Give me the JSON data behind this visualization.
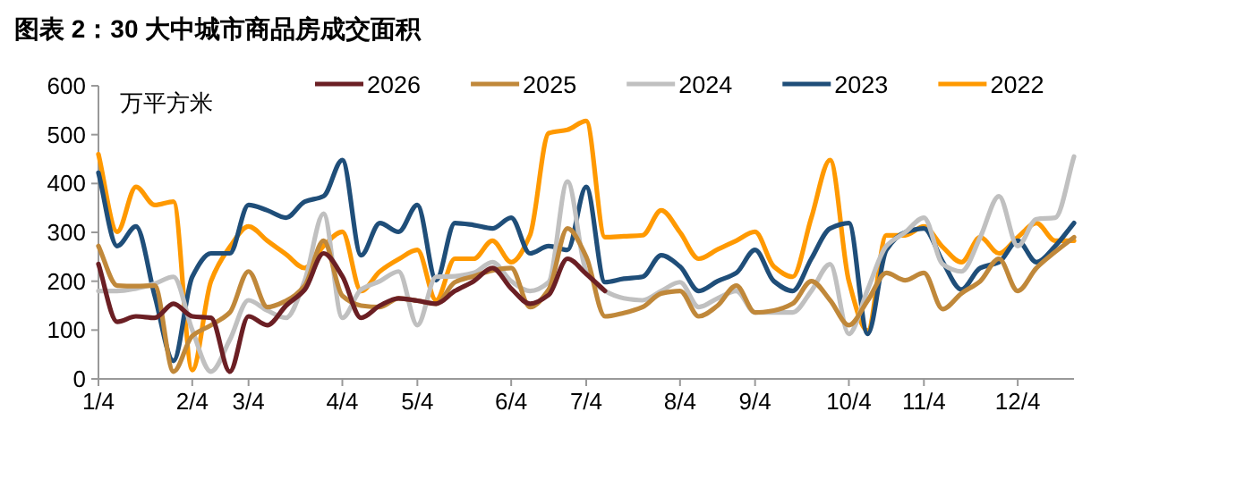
{
  "chart_data": {
    "type": "line",
    "title": "图表 2：30 大中城市商品房成交面积",
    "ylabel": "万平方米",
    "legend": "top",
    "grid": false,
    "categories": [
      "1/4",
      null,
      null,
      null,
      null,
      "2/4",
      null,
      null,
      "3/4",
      null,
      null,
      null,
      null,
      "4/4",
      null,
      null,
      null,
      "5/4",
      null,
      null,
      null,
      null,
      "6/4",
      null,
      null,
      null,
      "7/4",
      null,
      null,
      null,
      null,
      "8/4",
      null,
      null,
      null,
      "9/4",
      null,
      null,
      null,
      null,
      "10/4",
      null,
      null,
      null,
      "11/4",
      null,
      null,
      null,
      null,
      "12/4",
      null,
      null,
      null
    ],
    "ylim": [
      0,
      600
    ],
    "yticks": [
      0,
      100,
      200,
      300,
      400,
      500,
      600
    ],
    "series": [
      {
        "name": "2026",
        "color": "#6b1f24",
        "values": [
          235,
          117,
          128,
          125,
          154,
          128,
          125,
          15,
          128,
          110,
          150,
          183,
          257,
          210,
          125,
          150,
          165,
          160,
          154,
          180,
          200,
          227,
          185,
          154,
          172,
          246,
          215,
          180,
          null,
          null,
          null,
          null,
          null,
          null,
          null,
          null,
          null,
          null,
          null,
          null,
          null,
          null,
          null,
          null,
          null,
          null,
          null,
          null,
          null,
          null,
          null,
          null,
          null
        ]
      },
      {
        "name": "2025",
        "color": "#c0883a",
        "values": [
          272,
          191,
          190,
          191,
          15,
          88,
          110,
          136,
          220,
          147,
          160,
          191,
          283,
          170,
          150,
          147,
          165,
          160,
          154,
          198,
          210,
          222,
          227,
          147,
          183,
          308,
          250,
          128,
          135,
          147,
          175,
          180,
          128,
          150,
          191,
          136,
          140,
          154,
          200,
          161,
          110,
          160,
          217,
          202,
          217,
          143,
          175,
          200,
          246,
          180,
          227,
          260,
          290
        ]
      },
      {
        "name": "2024",
        "color": "#c0c0c0",
        "values": [
          180,
          180,
          185,
          195,
          209,
          100,
          15,
          80,
          161,
          140,
          125,
          202,
          338,
          125,
          183,
          200,
          220,
          110,
          209,
          210,
          217,
          239,
          200,
          180,
          198,
          404,
          220,
          180,
          165,
          161,
          180,
          198,
          147,
          165,
          180,
          136,
          136,
          136,
          180,
          235,
          92,
          183,
          272,
          300,
          330,
          235,
          220,
          290,
          374,
          272,
          327,
          330,
          455
        ]
      },
      {
        "name": "2023",
        "color": "#1f4e79",
        "values": [
          422,
          272,
          312,
          170,
          37,
          209,
          257,
          257,
          356,
          345,
          330,
          363,
          374,
          448,
          253,
          319,
          301,
          356,
          202,
          319,
          315,
          308,
          330,
          257,
          272,
          264,
          393,
          198,
          205,
          209,
          253,
          230,
          180,
          200,
          217,
          264,
          200,
          180,
          246,
          308,
          319,
          92,
          264,
          300,
          308,
          240,
          183,
          227,
          239,
          283,
          239,
          272,
          319
        ]
      },
      {
        "name": "2022",
        "color": "#ff9900",
        "values": [
          460,
          301,
          393,
          356,
          363,
          18,
          200,
          270,
          312,
          283,
          255,
          227,
          272,
          301,
          180,
          220,
          245,
          264,
          161,
          246,
          246,
          283,
          239,
          294,
          503,
          510,
          528,
          290,
          292,
          294,
          345,
          300,
          246,
          265,
          283,
          301,
          230,
          209,
          330,
          448,
          200,
          99,
          294,
          294,
          312,
          270,
          239,
          290,
          257,
          290,
          319,
          283,
          283
        ]
      }
    ]
  }
}
